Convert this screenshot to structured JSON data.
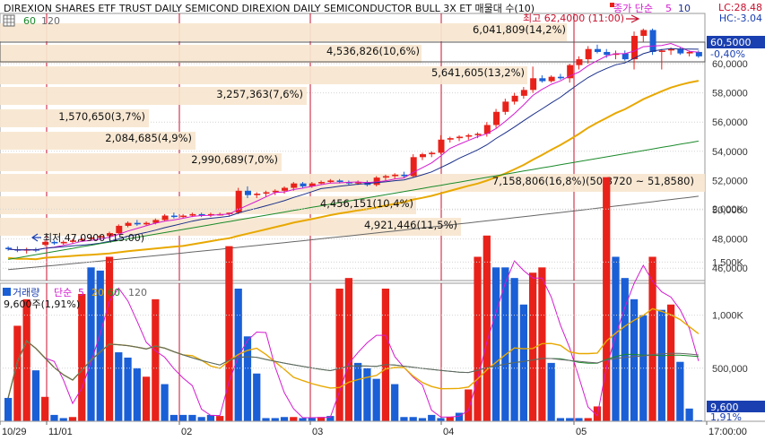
{
  "header": {
    "title": "DIREXION SHARES ETF TRUST DAILY SEMICOND  DIREXION DAILY SEMICONDUCTOR BULL 3X ET 매물대 수(10)",
    "ma_legend_prefix": "종가 단순",
    "ma_legend_values": [
      "5",
      "10"
    ],
    "ma_legend_row2": [
      "60",
      "120"
    ],
    "lc_label": "LC:28.48",
    "hc_label": "HC:-3.04"
  },
  "price_panel": {
    "y_ticks": [
      "60,0000",
      "58,0000",
      "56,0000",
      "54,0000",
      "52,0000",
      "50,0000",
      "48,0000",
      "46,0000"
    ],
    "current_price": "60,5000",
    "current_change": "-0,40%",
    "high_label": "최고 62,4000 (11:00)",
    "low_label": "최저 47,0900 (15:00)"
  },
  "volume_profile": [
    {
      "text": "6,041,809(14,2%)"
    },
    {
      "text": "4,536,826(10,6%)"
    },
    {
      "text": "5,641,605(13,2%)"
    },
    {
      "text": "3,257,363(7,6%)"
    },
    {
      "text": "1,570,650(3,7%)"
    },
    {
      "text": "2,084,685(4,9%)"
    },
    {
      "text": "2,990,689(7,0%)"
    },
    {
      "text": "7,158,806(16,8%)(50,3720 ~ 51,8580)"
    },
    {
      "text": "4,456,151(10,4%)"
    },
    {
      "text": "4,921,446(11,5%)"
    }
  ],
  "volume_panel": {
    "legend": [
      "거래량",
      "단순",
      "5",
      "20",
      "60",
      "120"
    ],
    "current_volume_label": "9,600주(1,91%)",
    "y_ticks": [
      "2,000K",
      "1,500K",
      "1,000K",
      "500,000"
    ],
    "current_volume": "9,600",
    "current_pct": "1,91%"
  },
  "x_axis": {
    "labels": [
      "10/29",
      "11/01",
      "02",
      "03",
      "04",
      "05",
      "17:00:00"
    ]
  },
  "colors": {
    "up": "#e8221a",
    "down": "#1a5fd6",
    "ma5": "#d41ad0",
    "ma10": "#1a2f8a",
    "ma20": "#e8a800",
    "ma60": "#1a8a2a",
    "ma120": "#666666",
    "profile_bg": "#f7e6cf",
    "day_separator": "#c8102e",
    "price_box": "#1a3fb0"
  }
}
